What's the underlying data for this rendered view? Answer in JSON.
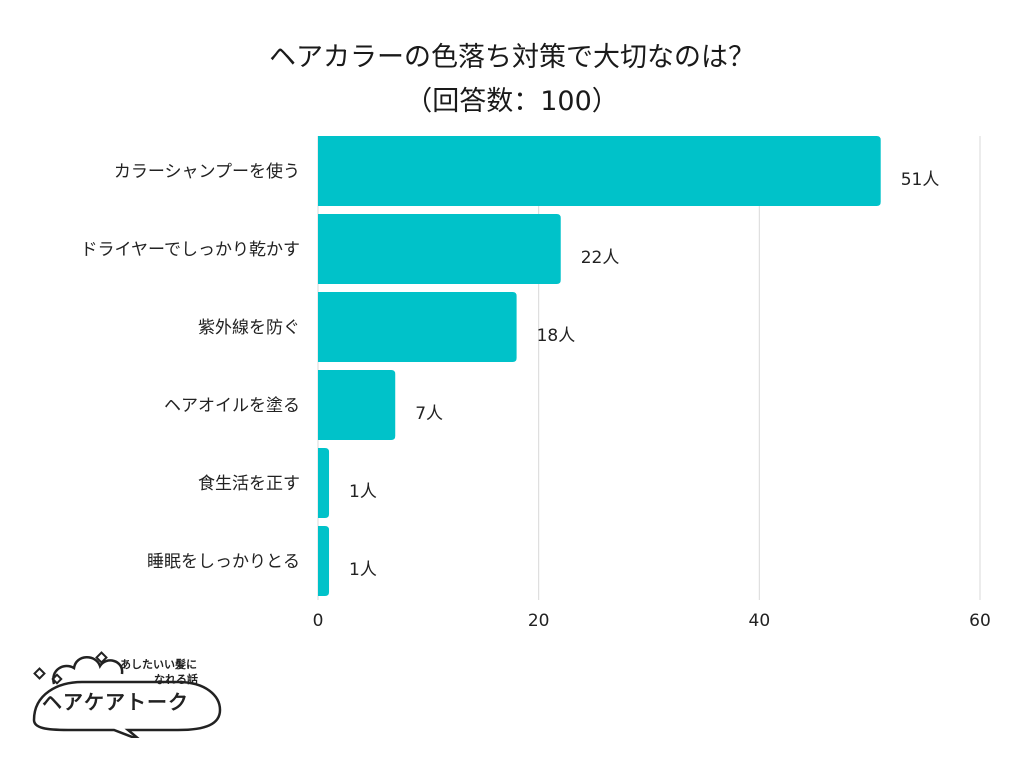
{
  "title_line1": "ヘアカラーの色落ち対策で大切なのは？",
  "title_line2": "（回答数：100）",
  "chart_data": {
    "type": "bar",
    "orientation": "horizontal",
    "title": "ヘアカラーの色落ち対策で大切なのは？（回答数：100）",
    "categories": [
      "カラーシャンプーを使う",
      "ドライヤーでしっかり乾かす",
      "紫外線を防ぐ",
      "ヘアオイルを塗る",
      "食生活を正す",
      "睡眠をしっかりとる"
    ],
    "values": [
      51,
      22,
      18,
      7,
      1,
      1
    ],
    "value_labels": [
      "51人",
      "22人",
      "18人",
      "7人",
      "1人",
      "1人"
    ],
    "xlim": [
      0,
      60
    ],
    "xticks": [
      "0",
      "20",
      "40",
      "60"
    ],
    "grid": true,
    "bar_color": "#00c2c9"
  },
  "logo": {
    "tagline_1": "あしたいい髪に",
    "tagline_2": "なれる話",
    "name": "ヘアケアトーク"
  }
}
